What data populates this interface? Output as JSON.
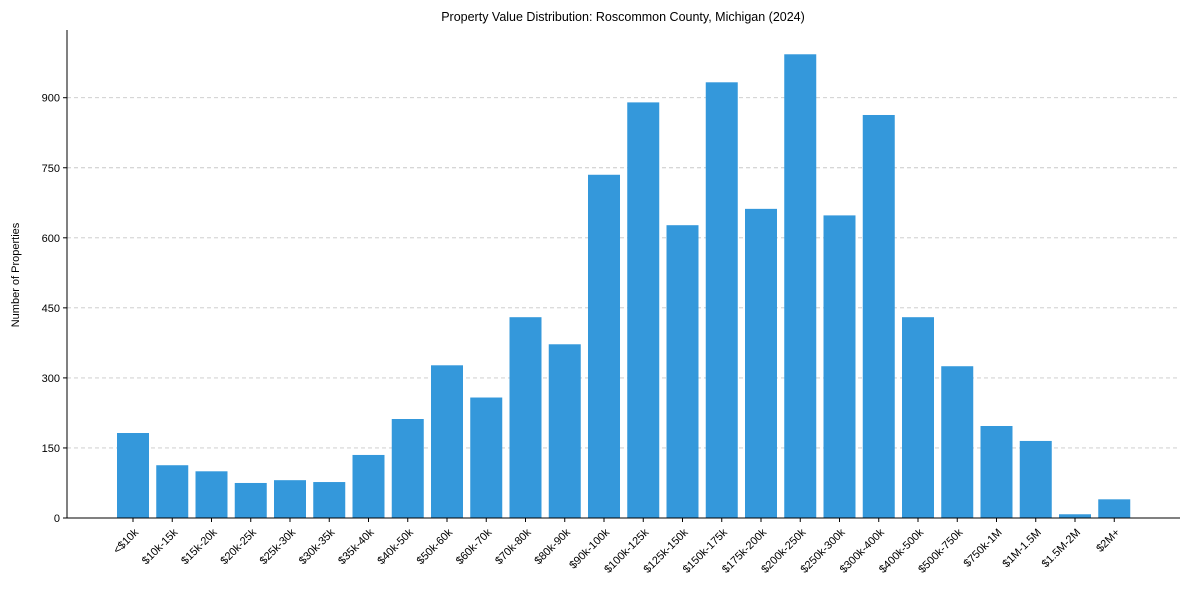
{
  "chart_data": {
    "type": "bar",
    "title": "Property Value Distribution: Roscommon County, Michigan (2024)",
    "xlabel": "",
    "ylabel": "Number of Properties",
    "ylim": [
      0,
      1045
    ],
    "yticks": [
      0,
      150,
      300,
      450,
      600,
      750,
      900
    ],
    "grid": "y-dashed",
    "bar_color": "#3498db",
    "categories": [
      "<$10k",
      "$10k-15k",
      "$15k-20k",
      "$20k-25k",
      "$25k-30k",
      "$30k-35k",
      "$35k-40k",
      "$40k-50k",
      "$50k-60k",
      "$60k-70k",
      "$70k-80k",
      "$80k-90k",
      "$90k-100k",
      "$100k-125k",
      "$125k-150k",
      "$150k-175k",
      "$175k-200k",
      "$200k-250k",
      "$250k-300k",
      "$300k-400k",
      "$400k-500k",
      "$500k-750k",
      "$750k-1M",
      "$1M-1.5M",
      "$1.5M-2M",
      "$2M+"
    ],
    "values": [
      182,
      113,
      100,
      75,
      81,
      77,
      135,
      212,
      327,
      258,
      430,
      372,
      735,
      890,
      627,
      933,
      662,
      993,
      648,
      863,
      430,
      325,
      197,
      165,
      8,
      40
    ]
  }
}
